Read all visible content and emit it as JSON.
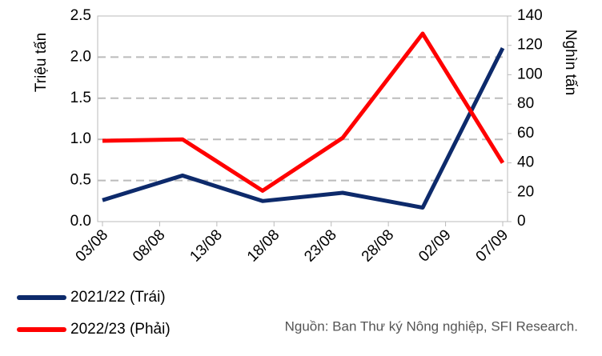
{
  "chart_data": {
    "type": "line",
    "y_label": "Triệu tấn",
    "y2_label": "Nghìn tấn",
    "source": "Nguồn: Ban Thư ký Nông nghiệp, SFI Research.",
    "x": [
      0,
      7,
      14,
      21,
      28,
      35
    ],
    "xlim": [
      0,
      35
    ],
    "xticks": [
      {
        "value": 0,
        "label": "03/08"
      },
      {
        "value": 5,
        "label": "08/08"
      },
      {
        "value": 10,
        "label": "13/08"
      },
      {
        "value": 15,
        "label": "18/08"
      },
      {
        "value": 20,
        "label": "23/08"
      },
      {
        "value": 25,
        "label": "28/08"
      },
      {
        "value": 30,
        "label": "02/09"
      },
      {
        "value": 35,
        "label": "07/09"
      }
    ],
    "ylim": [
      0,
      2.5
    ],
    "yticks": [
      {
        "value": 0,
        "label": "0.0"
      },
      0.5,
      {
        "value": 1,
        "label": "1.0"
      },
      1.5,
      {
        "value": 2,
        "label": "2.0"
      },
      2.5
    ],
    "y2lim": [
      0,
      140
    ],
    "y2ticks": [
      0,
      20,
      40,
      60,
      80,
      100,
      120,
      140
    ],
    "grid": true,
    "legend": "bottom-left",
    "series": [
      {
        "name": "2021/22 (Trái)",
        "color": "#0d2a6b",
        "values": [
          0.26,
          0.56,
          0.25,
          0.35,
          0.17,
          2.11
        ]
      },
      {
        "name": "2022/23 (Phải)",
        "color": "#ff0000",
        "axis": "y2",
        "values": [
          55,
          56,
          21,
          57,
          128,
          40
        ]
      }
    ]
  }
}
